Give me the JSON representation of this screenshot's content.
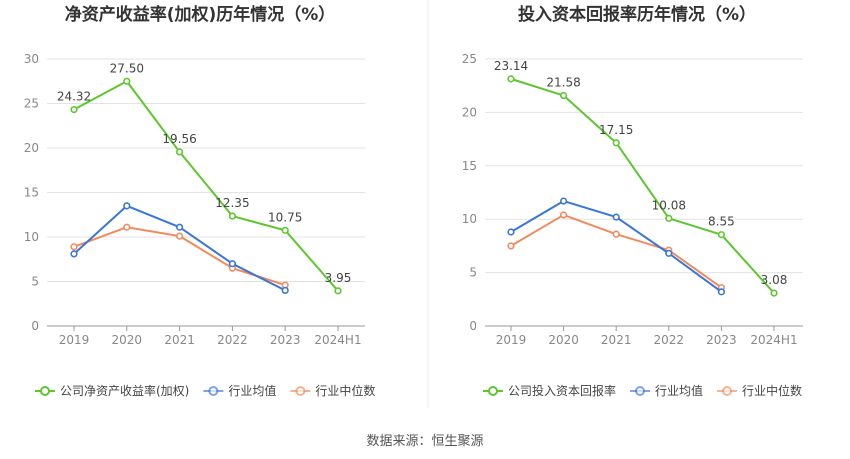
{
  "chart_data": [
    {
      "type": "line",
      "title": "净资产收益率(加权)历年情况（%）",
      "categories": [
        "2019",
        "2020",
        "2021",
        "2022",
        "2023",
        "2024H1"
      ],
      "ylim": [
        0,
        30
      ],
      "yticks": [
        0,
        5,
        10,
        15,
        20,
        25,
        30
      ],
      "grid": true,
      "legend_position": "bottom-left",
      "series": [
        {
          "name": "公司净资产收益率(加权)",
          "color": "#5cc62e",
          "values": [
            24.32,
            27.5,
            19.56,
            12.35,
            10.75,
            3.95
          ],
          "labels": [
            "24.32",
            "27.50",
            "19.56",
            "12.35",
            "10.75",
            "3.95"
          ]
        },
        {
          "name": "行业均值",
          "color": "#3a75d8",
          "values": [
            8.1,
            13.5,
            11.1,
            7.0,
            4.0,
            null
          ]
        },
        {
          "name": "行业中位数",
          "color": "#f08b5e",
          "values": [
            8.9,
            11.1,
            10.1,
            6.5,
            4.6,
            null
          ]
        }
      ]
    },
    {
      "type": "line",
      "title": "投入资本回报率历年情况（%）",
      "categories": [
        "2019",
        "2020",
        "2021",
        "2022",
        "2023",
        "2024H1"
      ],
      "ylim": [
        0,
        25
      ],
      "yticks": [
        0,
        5,
        10,
        15,
        20,
        25
      ],
      "grid": true,
      "legend_position": "bottom-left",
      "series": [
        {
          "name": "公司投入资本回报率",
          "color": "#5cc62e",
          "values": [
            23.14,
            21.58,
            17.15,
            10.08,
            8.55,
            3.08
          ],
          "labels": [
            "23.14",
            "21.58",
            "17.15",
            "10.08",
            "8.55",
            "3.08"
          ]
        },
        {
          "name": "行业均值",
          "color": "#3a75d8",
          "values": [
            8.8,
            11.7,
            10.2,
            6.8,
            3.2,
            null
          ]
        },
        {
          "name": "行业中位数",
          "color": "#f08b5e",
          "values": [
            7.5,
            10.4,
            8.6,
            7.1,
            3.6,
            null
          ]
        }
      ]
    }
  ],
  "footer": {
    "source": "数据来源：恒生聚源"
  }
}
